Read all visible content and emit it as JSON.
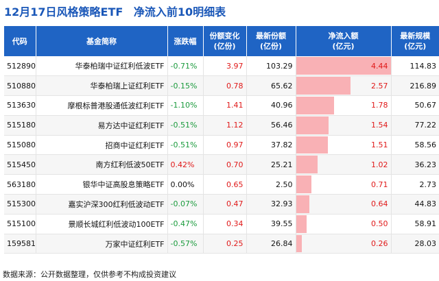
{
  "title": {
    "left": "12月17日风格策略ETF",
    "right": "净流入前10明细表"
  },
  "chart_data": {
    "type": "table",
    "columns": [
      "代码",
      "基金简称",
      "涨跌幅",
      "份额变化\n(亿份)",
      "最新份额\n(亿份)",
      "净流入额\n(亿元)",
      "最新规模\n(亿元)"
    ],
    "rows": [
      {
        "code": "512890",
        "name": "华泰柏瑞中证红利低波ETF",
        "change": "-0.71%",
        "share_change": "3.97",
        "shares": "103.29",
        "inflow": "4.44",
        "inflow_value": 4.44,
        "scale": "114.83"
      },
      {
        "code": "510880",
        "name": "华泰柏瑞上证红利ETF",
        "change": "-0.15%",
        "share_change": "0.78",
        "shares": "65.62",
        "inflow": "2.57",
        "inflow_value": 2.57,
        "scale": "216.89"
      },
      {
        "code": "513630",
        "name": "摩根标普港股通低波红利ETF",
        "change": "-1.10%",
        "share_change": "1.41",
        "shares": "40.96",
        "inflow": "1.78",
        "inflow_value": 1.78,
        "scale": "50.67"
      },
      {
        "code": "515180",
        "name": "易方达中证红利ETF",
        "change": "-0.51%",
        "share_change": "1.12",
        "shares": "56.46",
        "inflow": "1.54",
        "inflow_value": 1.54,
        "scale": "77.22"
      },
      {
        "code": "515080",
        "name": "招商中证红利ETF",
        "change": "-0.51%",
        "share_change": "0.97",
        "shares": "37.82",
        "inflow": "1.51",
        "inflow_value": 1.51,
        "scale": "58.56"
      },
      {
        "code": "515450",
        "name": "南方红利低波50ETF",
        "change": "0.42%",
        "share_change": "0.70",
        "shares": "25.21",
        "inflow": "1.02",
        "inflow_value": 1.02,
        "scale": "36.23"
      },
      {
        "code": "563180",
        "name": "银华中证高股息策略ETF",
        "change": "0.00%",
        "share_change": "0.65",
        "shares": "2.50",
        "inflow": "0.71",
        "inflow_value": 0.71,
        "scale": "2.73"
      },
      {
        "code": "515300",
        "name": "嘉实沪深300红利低波动ETF",
        "change": "-0.07%",
        "share_change": "0.47",
        "shares": "32.93",
        "inflow": "0.64",
        "inflow_value": 0.64,
        "scale": "44.83"
      },
      {
        "code": "515100",
        "name": "景顺长城红利低波动100ETF",
        "change": "-0.47%",
        "share_change": "0.34",
        "shares": "39.55",
        "inflow": "0.50",
        "inflow_value": 0.5,
        "scale": "58.91"
      },
      {
        "code": "159581",
        "name": "万家中证红利ETF",
        "change": "-0.57%",
        "share_change": "0.25",
        "shares": "26.84",
        "inflow": "0.26",
        "inflow_value": 0.26,
        "scale": "28.03"
      }
    ],
    "inflow_bar_max": 4.44,
    "colors": {
      "header_bg": "#1f64c4",
      "title": "#1a57b8",
      "positive": "#e01818",
      "negative": "#1a9a3c",
      "inflow_bar": "#f9b1b5"
    }
  },
  "footer": "数据来源：公开数据整理，仅供参考不构成投资建议"
}
